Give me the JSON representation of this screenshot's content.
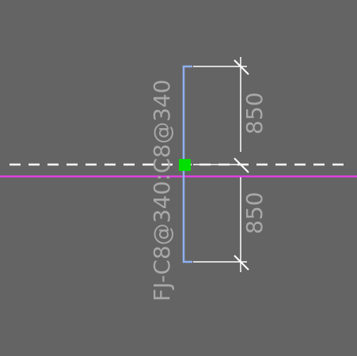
{
  "drawing": {
    "rebar_label": "FJ-C8@340:C8@340",
    "dimension_upper": "850",
    "dimension_lower": "850"
  },
  "colors": {
    "background": "#646464",
    "axis_line": "#e040e0",
    "reference_line": "#ffffff",
    "rebar_line": "#8fb0f0",
    "dimension_line": "#ffffff",
    "grip_point": "#00e000",
    "text": "#a8a8a8"
  }
}
